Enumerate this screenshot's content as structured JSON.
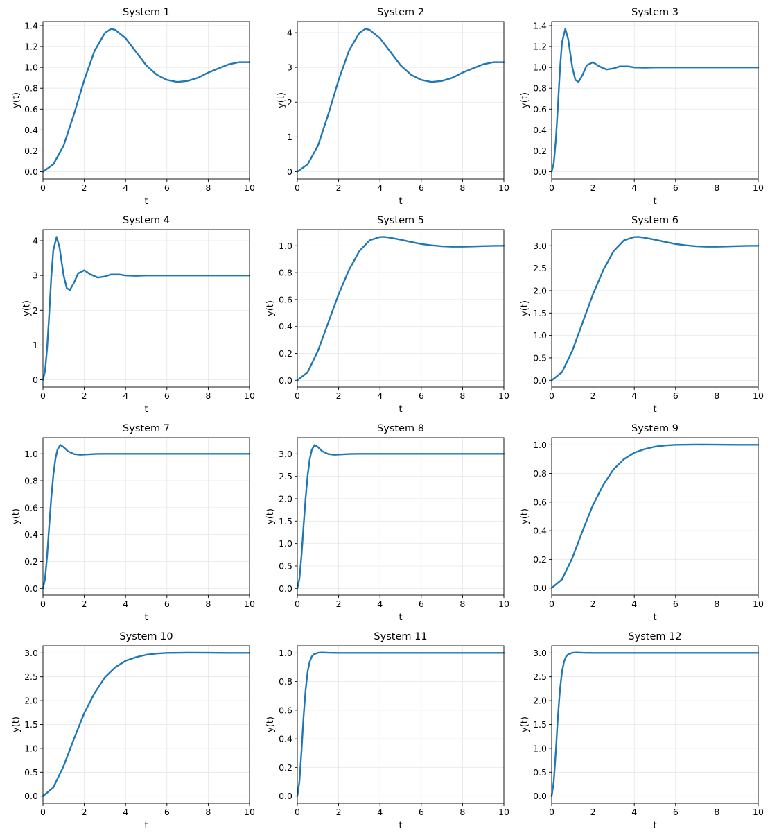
{
  "chart_data": [
    {
      "type": "line",
      "title": "System 1",
      "xlabel": "t",
      "ylabel": "y(t)",
      "xlim": [
        0,
        10
      ],
      "ylim": [
        -0.07,
        1.44
      ],
      "xticks": [
        "0",
        "2",
        "4",
        "6",
        "8",
        "10"
      ],
      "yticks": [
        "0.0",
        "0.2",
        "0.4",
        "0.6",
        "0.8",
        "1.0",
        "1.2",
        "1.4"
      ],
      "grid": true,
      "color": "#1f77b4",
      "series": [
        {
          "x": [
            0,
            0.5,
            1,
            1.5,
            2,
            2.5,
            3,
            3.3,
            3.5,
            4,
            4.5,
            5,
            5.5,
            6,
            6.5,
            7,
            7.5,
            8,
            8.5,
            9,
            9.5,
            10
          ],
          "y": [
            0,
            0.07,
            0.25,
            0.55,
            0.88,
            1.16,
            1.33,
            1.37,
            1.36,
            1.28,
            1.15,
            1.02,
            0.93,
            0.88,
            0.86,
            0.87,
            0.9,
            0.95,
            0.99,
            1.03,
            1.05,
            1.05
          ]
        }
      ]
    },
    {
      "type": "line",
      "title": "System 2",
      "xlabel": "t",
      "ylabel": "y(t)",
      "xlim": [
        0,
        10
      ],
      "ylim": [
        -0.21,
        4.32
      ],
      "xticks": [
        "0",
        "2",
        "4",
        "6",
        "8",
        "10"
      ],
      "yticks": [
        "0",
        "1",
        "2",
        "3",
        "4"
      ],
      "grid": true,
      "color": "#1f77b4",
      "series": [
        {
          "x": [
            0,
            0.5,
            1,
            1.5,
            2,
            2.5,
            3,
            3.3,
            3.5,
            4,
            4.5,
            5,
            5.5,
            6,
            6.5,
            7,
            7.5,
            8,
            8.5,
            9,
            9.5,
            10
          ],
          "y": [
            0,
            0.21,
            0.75,
            1.65,
            2.64,
            3.48,
            3.99,
            4.11,
            4.08,
            3.84,
            3.45,
            3.06,
            2.79,
            2.64,
            2.58,
            2.61,
            2.7,
            2.85,
            2.97,
            3.09,
            3.15,
            3.15
          ]
        }
      ]
    },
    {
      "type": "line",
      "title": "System 3",
      "xlabel": "t",
      "ylabel": "y(t)",
      "xlim": [
        0,
        10
      ],
      "ylim": [
        -0.07,
        1.44
      ],
      "xticks": [
        "0",
        "2",
        "4",
        "6",
        "8",
        "10"
      ],
      "yticks": [
        "0.0",
        "0.2",
        "0.4",
        "0.6",
        "0.8",
        "1.0",
        "1.2",
        "1.4"
      ],
      "grid": true,
      "color": "#1f77b4",
      "series": [
        {
          "x": [
            0,
            0.1,
            0.2,
            0.3,
            0.4,
            0.5,
            0.66,
            0.8,
            1.0,
            1.15,
            1.3,
            1.5,
            1.7,
            2.0,
            2.3,
            2.65,
            3.0,
            3.3,
            3.7,
            4.0,
            4.5,
            5.0,
            6.0,
            8.0,
            10.0
          ],
          "y": [
            0,
            0.08,
            0.3,
            0.62,
            0.98,
            1.24,
            1.37,
            1.27,
            1.0,
            0.88,
            0.86,
            0.93,
            1.02,
            1.05,
            1.01,
            0.98,
            0.99,
            1.01,
            1.01,
            1.0,
            0.997,
            1.0,
            1.0,
            1.0,
            1.0
          ]
        }
      ]
    },
    {
      "type": "line",
      "title": "System 4",
      "xlabel": "t",
      "ylabel": "y(t)",
      "xlim": [
        0,
        10
      ],
      "ylim": [
        -0.21,
        4.32
      ],
      "xticks": [
        "0",
        "2",
        "4",
        "6",
        "8",
        "10"
      ],
      "yticks": [
        "0",
        "1",
        "2",
        "3",
        "4"
      ],
      "grid": true,
      "color": "#1f77b4",
      "series": [
        {
          "x": [
            0,
            0.1,
            0.2,
            0.3,
            0.4,
            0.5,
            0.66,
            0.8,
            1.0,
            1.15,
            1.3,
            1.5,
            1.7,
            2.0,
            2.3,
            2.65,
            3.0,
            3.3,
            3.7,
            4.0,
            4.5,
            5.0,
            6.0,
            8.0,
            10.0
          ],
          "y": [
            0,
            0.24,
            0.9,
            1.86,
            2.94,
            3.72,
            4.11,
            3.81,
            3.0,
            2.64,
            2.58,
            2.79,
            3.06,
            3.15,
            3.03,
            2.94,
            2.97,
            3.03,
            3.03,
            3.0,
            2.99,
            3.0,
            3.0,
            3.0,
            3.0
          ]
        }
      ]
    },
    {
      "type": "line",
      "title": "System 5",
      "xlabel": "t",
      "ylabel": "y(t)",
      "xlim": [
        0,
        10
      ],
      "ylim": [
        -0.05,
        1.12
      ],
      "xticks": [
        "0",
        "2",
        "4",
        "6",
        "8",
        "10"
      ],
      "yticks": [
        "0.0",
        "0.2",
        "0.4",
        "0.6",
        "0.8",
        "1.0"
      ],
      "grid": true,
      "color": "#1f77b4",
      "series": [
        {
          "x": [
            0,
            0.5,
            1,
            1.5,
            2,
            2.5,
            3,
            3.5,
            4,
            4.2,
            4.5,
            5,
            5.5,
            6,
            6.5,
            7,
            7.5,
            8,
            8.5,
            9,
            9.5,
            10
          ],
          "y": [
            0,
            0.06,
            0.22,
            0.43,
            0.64,
            0.82,
            0.96,
            1.04,
            1.065,
            1.066,
            1.06,
            1.045,
            1.028,
            1.013,
            1.003,
            0.996,
            0.993,
            0.993,
            0.995,
            0.997,
            0.999,
            1.0
          ]
        }
      ]
    },
    {
      "type": "line",
      "title": "System 6",
      "xlabel": "t",
      "ylabel": "y(t)",
      "xlim": [
        0,
        10
      ],
      "ylim": [
        -0.15,
        3.36
      ],
      "xticks": [
        "0",
        "2",
        "4",
        "6",
        "8",
        "10"
      ],
      "yticks": [
        "0.0",
        "0.5",
        "1.0",
        "1.5",
        "2.0",
        "2.5",
        "3.0"
      ],
      "grid": true,
      "color": "#1f77b4",
      "series": [
        {
          "x": [
            0,
            0.5,
            1,
            1.5,
            2,
            2.5,
            3,
            3.5,
            4,
            4.2,
            4.5,
            5,
            5.5,
            6,
            6.5,
            7,
            7.5,
            8,
            8.5,
            9,
            9.5,
            10
          ],
          "y": [
            0,
            0.18,
            0.66,
            1.29,
            1.92,
            2.46,
            2.88,
            3.12,
            3.195,
            3.198,
            3.18,
            3.135,
            3.084,
            3.039,
            3.009,
            2.988,
            2.979,
            2.979,
            2.985,
            2.991,
            2.997,
            3.0
          ]
        }
      ]
    },
    {
      "type": "line",
      "title": "System 7",
      "xlabel": "t",
      "ylabel": "y(t)",
      "xlim": [
        0,
        10
      ],
      "ylim": [
        -0.05,
        1.12
      ],
      "xticks": [
        "0",
        "2",
        "4",
        "6",
        "8",
        "10"
      ],
      "yticks": [
        "0.0",
        "0.2",
        "0.4",
        "0.6",
        "0.8",
        "1.0"
      ],
      "grid": true,
      "color": "#1f77b4",
      "series": [
        {
          "x": [
            0,
            0.1,
            0.2,
            0.3,
            0.4,
            0.5,
            0.6,
            0.7,
            0.84,
            1.0,
            1.2,
            1.5,
            1.8,
            2.2,
            2.6,
            3.0,
            4.0,
            6.0,
            10.0
          ],
          "y": [
            0,
            0.07,
            0.24,
            0.46,
            0.67,
            0.84,
            0.96,
            1.03,
            1.066,
            1.05,
            1.02,
            0.998,
            0.993,
            0.996,
            0.999,
            1.0,
            1.0,
            1.0,
            1.0
          ]
        }
      ]
    },
    {
      "type": "line",
      "title": "System 8",
      "xlabel": "t",
      "ylabel": "y(t)",
      "xlim": [
        0,
        10
      ],
      "ylim": [
        -0.15,
        3.36
      ],
      "xticks": [
        "0",
        "2",
        "4",
        "6",
        "8",
        "10"
      ],
      "yticks": [
        "0.0",
        "0.5",
        "1.0",
        "1.5",
        "2.0",
        "2.5",
        "3.0"
      ],
      "grid": true,
      "color": "#1f77b4",
      "series": [
        {
          "x": [
            0,
            0.1,
            0.2,
            0.3,
            0.4,
            0.5,
            0.6,
            0.7,
            0.84,
            1.0,
            1.2,
            1.5,
            1.8,
            2.2,
            2.6,
            3.0,
            4.0,
            6.0,
            10.0
          ],
          "y": [
            0,
            0.21,
            0.72,
            1.38,
            2.01,
            2.52,
            2.88,
            3.09,
            3.198,
            3.15,
            3.06,
            2.994,
            2.979,
            2.988,
            2.997,
            3.0,
            3.0,
            3.0,
            3.0
          ]
        }
      ]
    },
    {
      "type": "line",
      "title": "System 9",
      "xlabel": "t",
      "ylabel": "y(t)",
      "xlim": [
        0,
        10
      ],
      "ylim": [
        -0.05,
        1.05
      ],
      "xticks": [
        "0",
        "2",
        "4",
        "6",
        "8",
        "10"
      ],
      "yticks": [
        "0.0",
        "0.2",
        "0.4",
        "0.6",
        "0.8",
        "1.0"
      ],
      "grid": true,
      "color": "#1f77b4",
      "series": [
        {
          "x": [
            0,
            0.5,
            1,
            1.5,
            2,
            2.5,
            3,
            3.5,
            4,
            4.5,
            5,
            5.5,
            6,
            7,
            8,
            9,
            10
          ],
          "y": [
            0,
            0.06,
            0.21,
            0.4,
            0.58,
            0.72,
            0.83,
            0.9,
            0.945,
            0.97,
            0.987,
            0.996,
            1.0,
            1.002,
            1.001,
            1.0,
            1.0
          ]
        }
      ]
    },
    {
      "type": "line",
      "title": "System 10",
      "xlabel": "t",
      "ylabel": "y(t)",
      "xlim": [
        0,
        10
      ],
      "ylim": [
        -0.15,
        3.15
      ],
      "xticks": [
        "0",
        "2",
        "4",
        "6",
        "8",
        "10"
      ],
      "yticks": [
        "0.0",
        "0.5",
        "1.0",
        "1.5",
        "2.0",
        "2.5",
        "3.0"
      ],
      "grid": true,
      "color": "#1f77b4",
      "series": [
        {
          "x": [
            0,
            0.5,
            1,
            1.5,
            2,
            2.5,
            3,
            3.5,
            4,
            4.5,
            5,
            5.5,
            6,
            7,
            8,
            9,
            10
          ],
          "y": [
            0,
            0.18,
            0.63,
            1.2,
            1.74,
            2.16,
            2.49,
            2.7,
            2.835,
            2.91,
            2.961,
            2.988,
            3.0,
            3.006,
            3.003,
            3.0,
            3.0
          ]
        }
      ]
    },
    {
      "type": "line",
      "title": "System 11",
      "xlabel": "t",
      "ylabel": "y(t)",
      "xlim": [
        0,
        10
      ],
      "ylim": [
        -0.05,
        1.05
      ],
      "xticks": [
        "0",
        "2",
        "4",
        "6",
        "8",
        "10"
      ],
      "yticks": [
        "0.0",
        "0.2",
        "0.4",
        "0.6",
        "0.8",
        "1.0"
      ],
      "grid": true,
      "color": "#1f77b4",
      "series": [
        {
          "x": [
            0,
            0.1,
            0.2,
            0.3,
            0.4,
            0.5,
            0.6,
            0.7,
            0.8,
            1.0,
            1.2,
            1.5,
            2.0,
            3.0,
            10.0
          ],
          "y": [
            0,
            0.1,
            0.31,
            0.55,
            0.74,
            0.87,
            0.94,
            0.975,
            0.99,
            1.001,
            1.003,
            1.001,
            1.0,
            1.0,
            1.0
          ]
        }
      ]
    },
    {
      "type": "line",
      "title": "System 12",
      "xlabel": "t",
      "ylabel": "y(t)",
      "xlim": [
        0,
        10
      ],
      "ylim": [
        -0.15,
        3.15
      ],
      "xticks": [
        "0",
        "2",
        "4",
        "6",
        "8",
        "10"
      ],
      "yticks": [
        "0.0",
        "0.5",
        "1.0",
        "1.5",
        "2.0",
        "2.5",
        "3.0"
      ],
      "grid": true,
      "color": "#1f77b4",
      "series": [
        {
          "x": [
            0,
            0.1,
            0.2,
            0.3,
            0.4,
            0.5,
            0.6,
            0.7,
            0.8,
            1.0,
            1.2,
            1.5,
            2.0,
            3.0,
            10.0
          ],
          "y": [
            0,
            0.3,
            0.93,
            1.65,
            2.22,
            2.61,
            2.82,
            2.925,
            2.97,
            3.003,
            3.009,
            3.003,
            3.0,
            3.0,
            3.0
          ]
        }
      ]
    }
  ]
}
